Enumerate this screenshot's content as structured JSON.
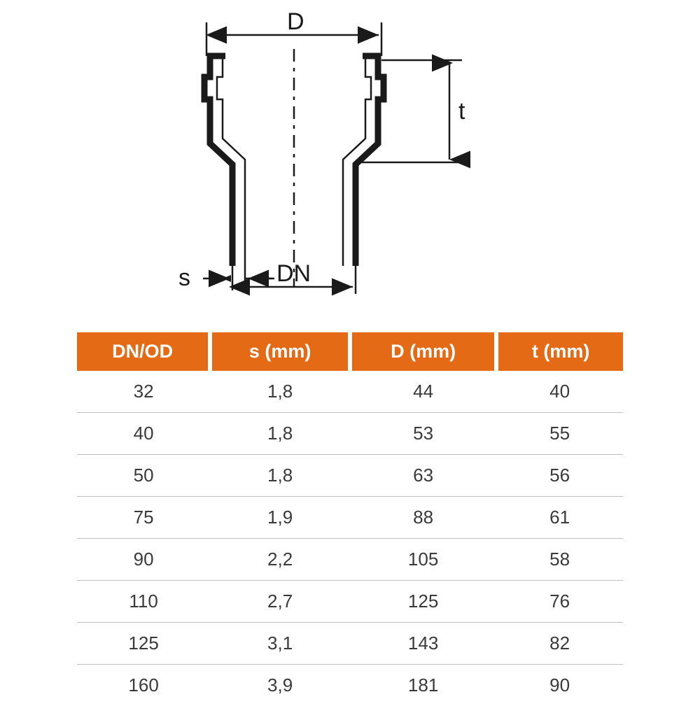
{
  "diagram": {
    "labels": {
      "D": "D",
      "t": "t",
      "s": "s",
      "DN": "DN"
    },
    "stroke_color": "#1a1a1a",
    "dash_pattern": "16 8 4 8",
    "label_fontsize": 34,
    "thick_stroke": 9,
    "thin_stroke": 2.5
  },
  "table": {
    "header_bg": "#e46a16",
    "header_text_color": "#ffffff",
    "row_border_color": "#bfbfbf",
    "cell_text_color": "#3a3a3a",
    "columns": [
      "DN/OD",
      "s (mm)",
      "D (mm)",
      "t (mm)"
    ],
    "rows": [
      [
        "32",
        "1,8",
        "44",
        "40"
      ],
      [
        "40",
        "1,8",
        "53",
        "55"
      ],
      [
        "50",
        "1,8",
        "63",
        "56"
      ],
      [
        "75",
        "1,9",
        "88",
        "61"
      ],
      [
        "90",
        "2,2",
        "105",
        "58"
      ],
      [
        "110",
        "2,7",
        "125",
        "76"
      ],
      [
        "125",
        "3,1",
        "143",
        "82"
      ],
      [
        "160",
        "3,9",
        "181",
        "90"
      ]
    ]
  }
}
